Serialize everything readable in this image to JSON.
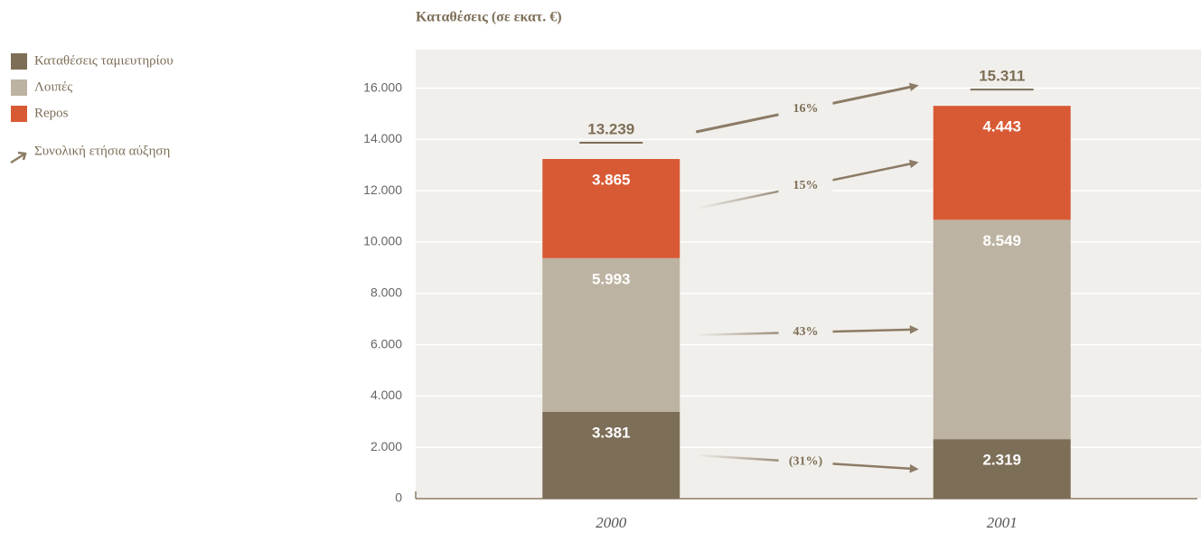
{
  "chart_data": {
    "type": "stacked_bar",
    "title": "Καταθέσεις (σε εκατ. €)",
    "categories": [
      "2000",
      "2001"
    ],
    "series": [
      {
        "name": "Καταθέσεις ταμιευτηρίου",
        "color": "#7d6e57",
        "values": [
          3381,
          2319
        ],
        "value_labels": [
          "3.381",
          "2.319"
        ]
      },
      {
        "name": "Λοιπές",
        "color": "#bdb3a2",
        "values": [
          5993,
          8549
        ],
        "value_labels": [
          "5.993",
          "8.549"
        ]
      },
      {
        "name": "Repos",
        "color": "#d85a35",
        "values": [
          3865,
          4443
        ],
        "value_labels": [
          "3.865",
          "4.443"
        ]
      }
    ],
    "totals": {
      "values": [
        13239,
        15311
      ],
      "value_labels": [
        "13.239",
        "15.311"
      ]
    },
    "growth": {
      "values": [
        -31,
        43,
        15
      ],
      "value_labels": [
        "(31%)",
        "43%",
        "15%"
      ]
    },
    "total_growth": {
      "value": 16,
      "label": "16%"
    },
    "growth_legend": "Συνολική ετήσια αύξηση",
    "ylim": [
      0,
      17500
    ],
    "yticks": [
      0,
      {
        "value": 2000,
        "label": "2.000"
      },
      {
        "value": 4000,
        "label": "4.000"
      },
      {
        "value": 6000,
        "label": "6.000"
      },
      {
        "value": 8000,
        "label": "8.000"
      },
      {
        "value": 10000,
        "label": "10.000"
      },
      {
        "value": 12000,
        "label": "12.000"
      },
      {
        "value": 14000,
        "label": "14.000"
      },
      {
        "value": 16000,
        "label": "16.000"
      }
    ],
    "grid": true,
    "legend": "left"
  }
}
